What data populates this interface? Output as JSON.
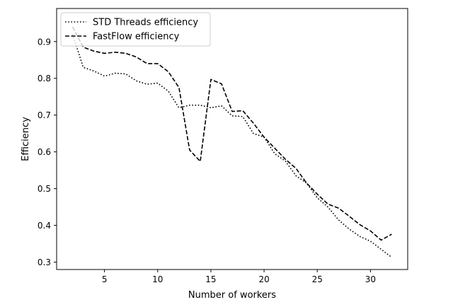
{
  "chart_data": {
    "type": "line",
    "xlabel": "Number of workers",
    "ylabel": "Efficiency",
    "xlim": [
      0.5,
      33.5
    ],
    "ylim": [
      0.28,
      0.99
    ],
    "xticks": [
      5,
      10,
      15,
      20,
      25,
      30
    ],
    "yticks": [
      0.3,
      0.4,
      0.5,
      0.6,
      0.7,
      0.8,
      0.9
    ],
    "grid": false,
    "legend_position": "top-left",
    "series": [
      {
        "name": "STD Threads efficiency",
        "style": "dotted",
        "color": "#000000",
        "x": [
          2,
          3,
          4,
          5,
          6,
          7,
          8,
          9,
          10,
          11,
          12,
          13,
          14,
          15,
          16,
          17,
          18,
          19,
          20,
          21,
          22,
          23,
          24,
          25,
          26,
          27,
          28,
          29,
          30,
          31,
          32
        ],
        "values": [
          0.92,
          0.83,
          0.82,
          0.806,
          0.814,
          0.812,
          0.793,
          0.784,
          0.787,
          0.765,
          0.72,
          0.727,
          0.727,
          0.72,
          0.725,
          0.698,
          0.696,
          0.65,
          0.64,
          0.595,
          0.575,
          0.535,
          0.515,
          0.475,
          0.45,
          0.415,
          0.39,
          0.37,
          0.357,
          0.335,
          0.313
        ]
      },
      {
        "name": "FastFlow efficiency",
        "style": "dashed",
        "color": "#000000",
        "x": [
          2,
          3,
          4,
          5,
          6,
          7,
          8,
          9,
          10,
          11,
          12,
          13,
          14,
          15,
          16,
          17,
          18,
          19,
          20,
          21,
          22,
          23,
          24,
          25,
          26,
          27,
          28,
          29,
          30,
          31,
          32
        ],
        "values": [
          0.94,
          0.885,
          0.874,
          0.868,
          0.871,
          0.868,
          0.858,
          0.84,
          0.84,
          0.818,
          0.775,
          0.605,
          0.574,
          0.797,
          0.785,
          0.71,
          0.712,
          0.678,
          0.64,
          0.61,
          0.58,
          0.555,
          0.515,
          0.485,
          0.458,
          0.447,
          0.425,
          0.402,
          0.385,
          0.36,
          0.376
        ]
      }
    ]
  }
}
